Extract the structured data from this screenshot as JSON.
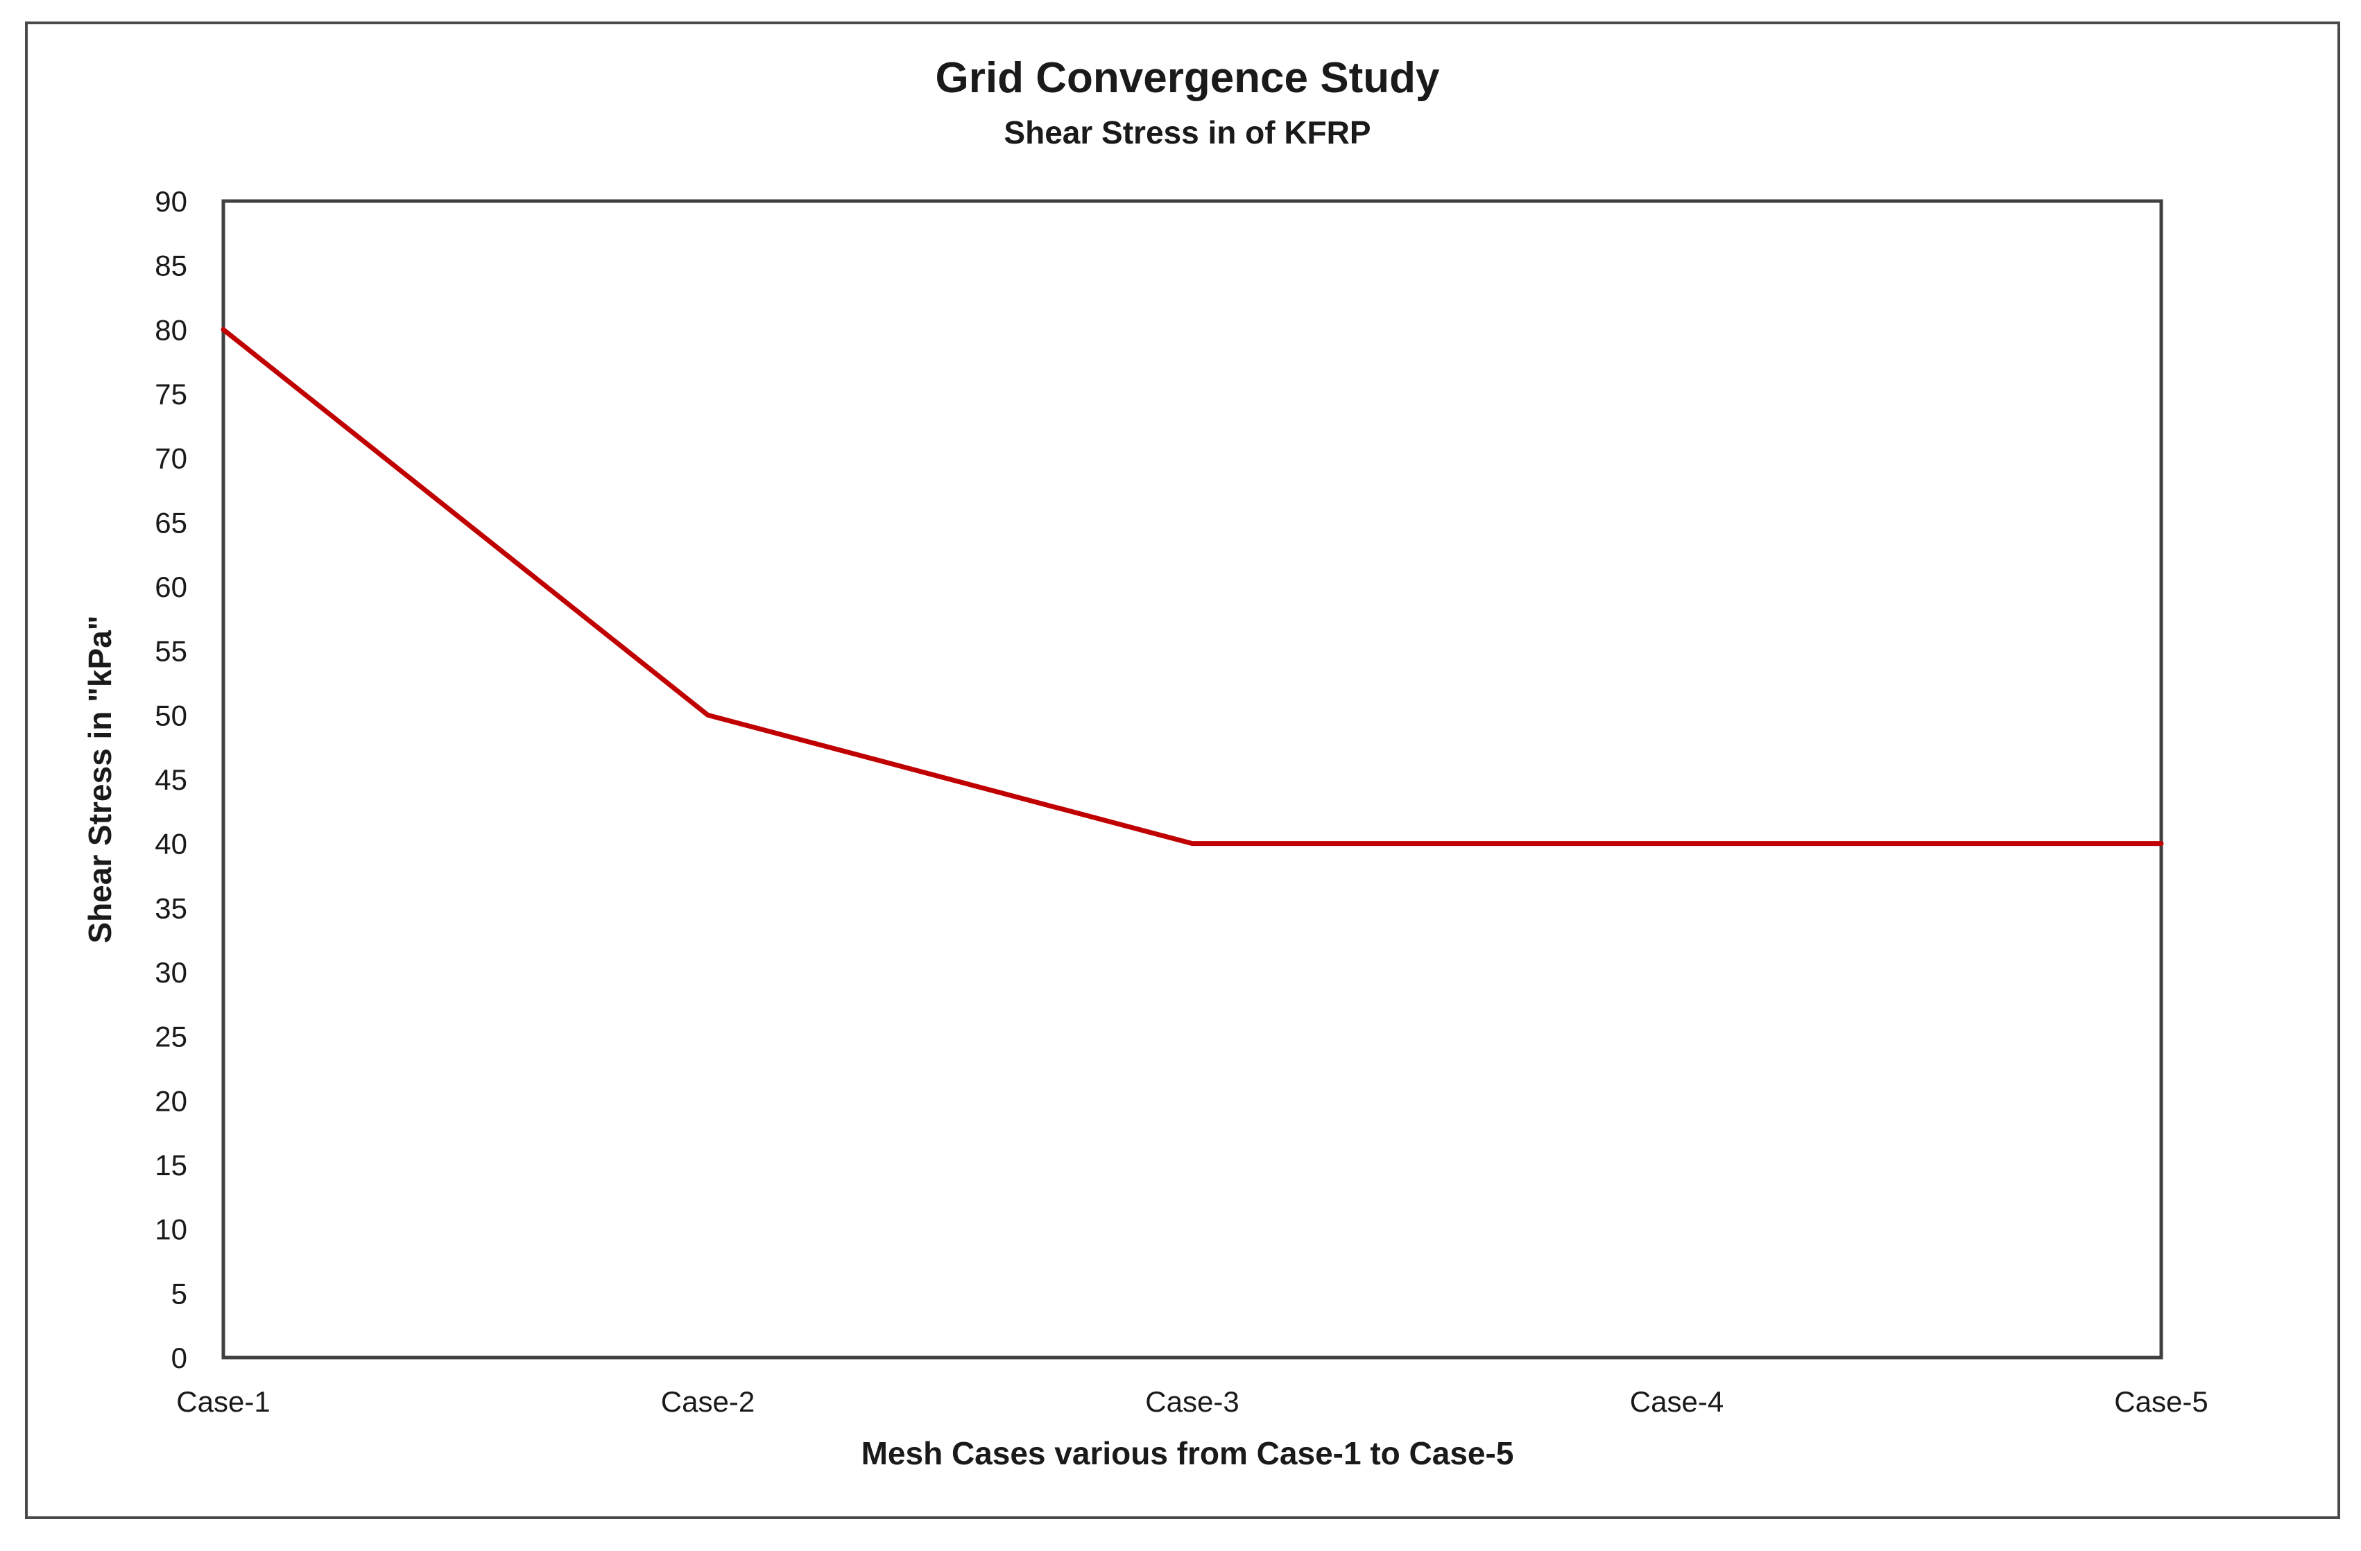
{
  "figure": {
    "border_color": "#4a4a4a",
    "background": "#ffffff"
  },
  "chart_data": {
    "type": "line",
    "title": "Grid Convergence Study",
    "subtitle": "Shear Stress in of KFRP",
    "xlabel": "Mesh Cases various from Case-1 to Case-5",
    "ylabel": "Shear Stress in \"kPa\"",
    "categories": [
      "Case-1",
      "Case-2",
      "Case-3",
      "Case-4",
      "Case-5"
    ],
    "series": [
      {
        "values": [
          80,
          50,
          40,
          40,
          40
        ],
        "color": "#C00000"
      }
    ],
    "ylim": [
      0,
      90
    ],
    "yticks": [
      0,
      5,
      10,
      15,
      20,
      25,
      30,
      35,
      40,
      45,
      50,
      55,
      60,
      65,
      70,
      75,
      80,
      85,
      90
    ],
    "grid": false,
    "legend": "none",
    "markers": "none",
    "axis_color": "#404040",
    "text_color": "#1a1a1a"
  }
}
